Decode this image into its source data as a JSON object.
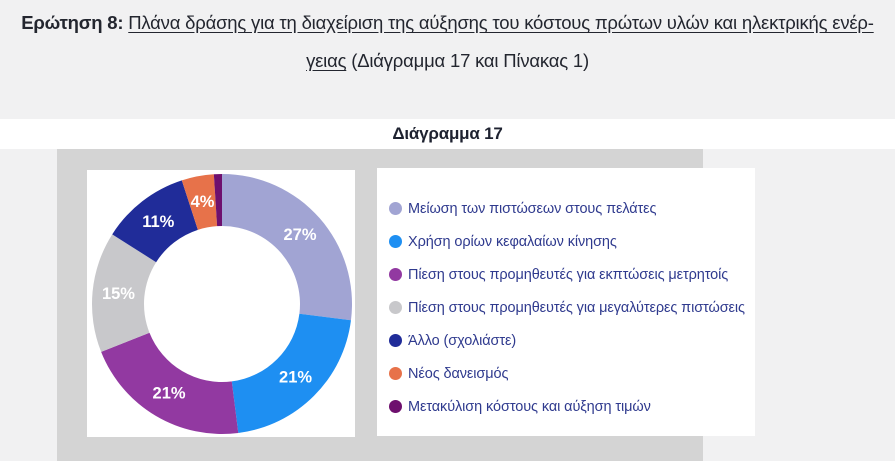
{
  "heading": {
    "label_bold": "Ερώτηση 8:",
    "line1_underlined": "Πλάνα δράσης για τη διαχείριση της αύξησης του κόστους πρώτων υλών και ηλεκτρικής ενέρ-",
    "line2_underlined": "γειας",
    "line2_rest": "(Διάγραμμα 17 και Πίνακας 1)"
  },
  "figure": {
    "title": "Διάγραμμα 17"
  },
  "chart_data": {
    "type": "pie",
    "subtype": "donut",
    "title": "Διάγραμμα 17",
    "start_angle_deg": 0,
    "direction": "clockwise",
    "inner_radius_ratio": 0.6,
    "legend_position": "right",
    "slices": [
      {
        "label": "Μείωση των πιστώσεων στους πελάτες",
        "value": 27,
        "data_label": "27%",
        "color": "#A1A4D3"
      },
      {
        "label": "Χρήση ορίων κεφαλαίων κίνησης",
        "value": 21,
        "data_label": "21%",
        "color": "#1E8FF2"
      },
      {
        "label": "Πίεση στους προμηθευτές για εκπτώσεις μετρητοίς",
        "value": 21,
        "data_label": "21%",
        "color": "#9239A1"
      },
      {
        "label": "Πίεση στους προμηθευτές για μεγαλύτερες πιστώσεις",
        "value": 15,
        "data_label": "15%",
        "color": "#C8C8CB"
      },
      {
        "label": "Άλλο (σχολιάστε)",
        "value": 11,
        "data_label": "11%",
        "color": "#202C99"
      },
      {
        "label": "Νέος δανεισμός",
        "value": 4,
        "data_label": "4%",
        "color": "#E7724A"
      },
      {
        "label": "Μετακύλιση κόστους και αύξηση τιμών",
        "value": 1,
        "data_label": "",
        "color": "#6E106E"
      }
    ],
    "colors": {
      "legend_text": "#2F3A8E",
      "data_label_text": "#FFFFFF",
      "panel_background": "#D4D4D4"
    }
  }
}
